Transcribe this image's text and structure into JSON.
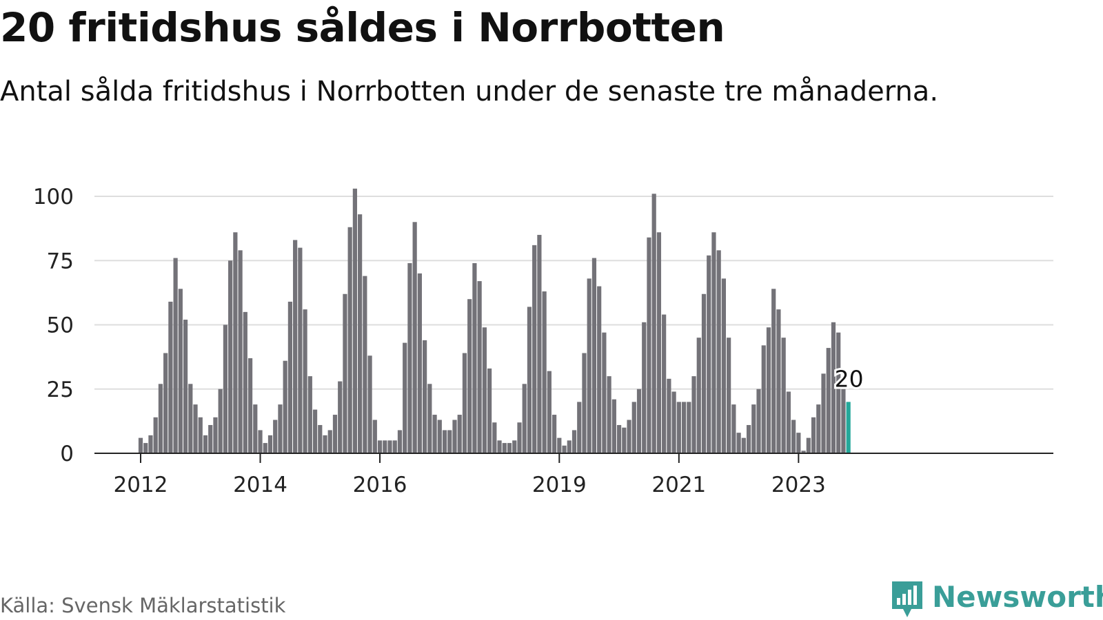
{
  "header": {
    "title": "20 fritidshus såldes i Norrbotten",
    "subtitle": "Antal sålda fritidshus i Norrbotten under de senaste tre månaderna."
  },
  "footer": {
    "source": "Källa: Svensk Mäklarstatistik",
    "brand": "Newsworthy",
    "brand_icon": "chart-bubble-logo-icon",
    "brand_color": "#3a9e98"
  },
  "chart_data": {
    "type": "bar",
    "x_start": "2011-07",
    "interval": "month",
    "ylim": [
      0,
      100
    ],
    "yticks": [
      0,
      25,
      50,
      75,
      100
    ],
    "xticks": [
      {
        "label": "2012",
        "date": "2012-01"
      },
      {
        "label": "2014",
        "date": "2014-01"
      },
      {
        "label": "2016",
        "date": "2016-01"
      },
      {
        "label": "2019",
        "date": "2019-01"
      },
      {
        "label": "2021",
        "date": "2021-01"
      },
      {
        "label": "2023",
        "date": "2023-01"
      }
    ],
    "grid": true,
    "bar_color": "#737278",
    "highlight_color": "#23a89a",
    "highlight_label": "20",
    "values": [
      0,
      0,
      0,
      0,
      0,
      0,
      6,
      4,
      7,
      14,
      27,
      39,
      59,
      76,
      64,
      52,
      27,
      19,
      14,
      7,
      11,
      14,
      25,
      50,
      75,
      86,
      79,
      55,
      37,
      19,
      9,
      4,
      7,
      13,
      19,
      36,
      59,
      83,
      80,
      56,
      30,
      17,
      11,
      7,
      9,
      15,
      28,
      62,
      88,
      103,
      93,
      69,
      38,
      13,
      5,
      5,
      5,
      5,
      9,
      43,
      74,
      90,
      70,
      44,
      27,
      15,
      13,
      9,
      9,
      13,
      15,
      39,
      60,
      74,
      67,
      49,
      33,
      12,
      5,
      4,
      4,
      5,
      12,
      27,
      57,
      81,
      85,
      63,
      32,
      15,
      6,
      3,
      5,
      9,
      20,
      39,
      68,
      76,
      65,
      47,
      30,
      21,
      11,
      10,
      13,
      20,
      25,
      51,
      84,
      101,
      86,
      54,
      29,
      24,
      20,
      20,
      20,
      30,
      45,
      62,
      77,
      86,
      79,
      68,
      45,
      19,
      8,
      6,
      11,
      19,
      25,
      42,
      49,
      64,
      56,
      45,
      24,
      13,
      8,
      1,
      6,
      14,
      19,
      31,
      41,
      51,
      47,
      25,
      20
    ]
  }
}
